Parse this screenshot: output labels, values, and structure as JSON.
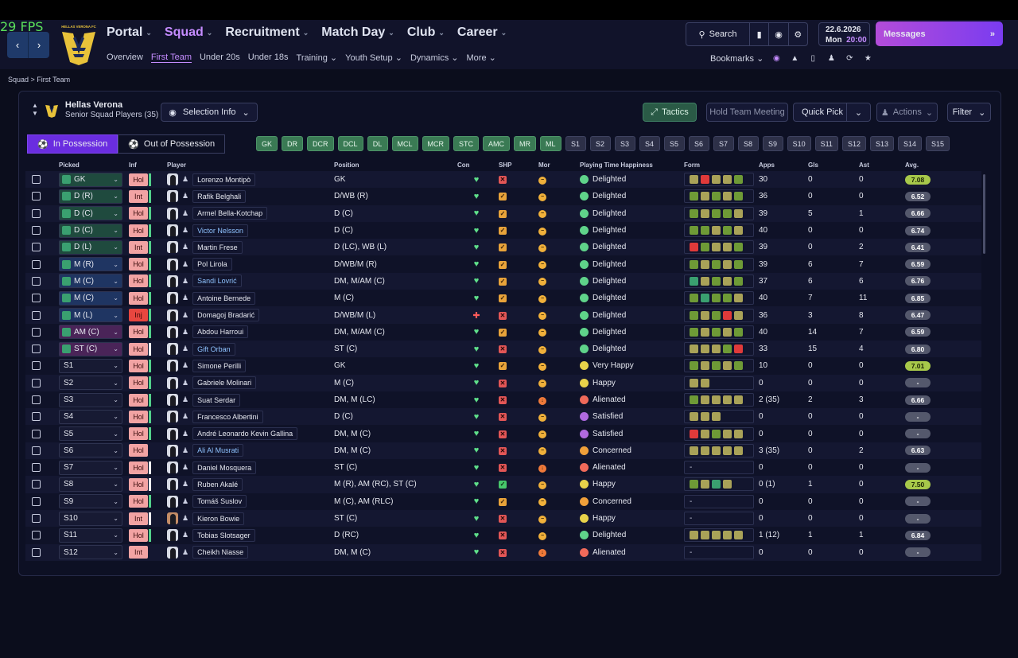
{
  "fps": "29 FPS",
  "club_crest_text": "HELLAS VERONA FC",
  "top_nav": [
    {
      "label": "Portal",
      "active": false
    },
    {
      "label": "Squad",
      "active": true
    },
    {
      "label": "Recruitment",
      "active": false
    },
    {
      "label": "Match Day",
      "active": false
    },
    {
      "label": "Club",
      "active": false
    },
    {
      "label": "Career",
      "active": false
    }
  ],
  "sub_nav": [
    {
      "label": "Overview",
      "active": false
    },
    {
      "label": "First Team",
      "active": true
    },
    {
      "label": "Under 20s",
      "active": false
    },
    {
      "label": "Under 18s",
      "active": false
    },
    {
      "label": "Training ⌄",
      "active": false
    },
    {
      "label": "Youth Setup ⌄",
      "active": false
    },
    {
      "label": "Dynamics ⌄",
      "active": false
    },
    {
      "label": "More ⌄",
      "active": false
    }
  ],
  "search_label": "Search",
  "date": "22.6.2026",
  "day": "Mon",
  "time": "20:00",
  "messages_label": "Messages",
  "bookmarks_label": "Bookmarks",
  "breadcrumb": "Squad  >  First Team",
  "team_name": "Hellas Verona",
  "team_sub": "Senior Squad Players (35)",
  "selection_info": "Selection Info",
  "tactics": "Tactics",
  "hold_meeting": "Hold Team Meeting",
  "quick_pick": "Quick Pick",
  "actions": "Actions",
  "filter": "Filter",
  "tab_in": "In Possession",
  "tab_out": "Out of Possession",
  "positions": [
    {
      "l": "GK",
      "g": true
    },
    {
      "l": "DR",
      "g": true
    },
    {
      "l": "DCR",
      "g": true
    },
    {
      "l": "DCL",
      "g": true
    },
    {
      "l": "DL",
      "g": true
    },
    {
      "l": "MCL",
      "g": true
    },
    {
      "l": "MCR",
      "g": true
    },
    {
      "l": "STC",
      "g": true
    },
    {
      "l": "AMC",
      "g": true
    },
    {
      "l": "MR",
      "g": true
    },
    {
      "l": "ML",
      "g": true
    },
    {
      "l": "S1",
      "g": false
    },
    {
      "l": "S2",
      "g": false
    },
    {
      "l": "S3",
      "g": false
    },
    {
      "l": "S4",
      "g": false
    },
    {
      "l": "S5",
      "g": false
    },
    {
      "l": "S6",
      "g": false
    },
    {
      "l": "S7",
      "g": false
    },
    {
      "l": "S8",
      "g": false
    },
    {
      "l": "S9",
      "g": false
    },
    {
      "l": "S10",
      "g": false
    },
    {
      "l": "S11",
      "g": false
    },
    {
      "l": "S12",
      "g": false
    },
    {
      "l": "S13",
      "g": false
    },
    {
      "l": "S14",
      "g": false
    },
    {
      "l": "S15",
      "g": false
    }
  ],
  "columns": [
    "Picked",
    "Inf",
    "Player",
    "Position",
    "Con",
    "SHP",
    "Mor",
    "Playing Time Happiness",
    "Form",
    "Apps",
    "Gls",
    "Ast",
    "Avg."
  ],
  "players": [
    {
      "pick": "GK",
      "pc": "g",
      "sq": "#3aa070",
      "sl": "#52d08a",
      "inf": "Hol",
      "name": "Lorenzo Montipò",
      "hl": false,
      "pos": "GK",
      "con": "g",
      "shp": "x",
      "mor": "o",
      "hap": "Delighted",
      "hf": "green",
      "form": "YRYYG",
      "apps": "30",
      "gls": "0",
      "ast": "0",
      "avg": "7.08",
      "hi": true
    },
    {
      "pick": "D (R)",
      "pc": "g",
      "sq": "#3aa070",
      "sl": "#52d08a",
      "inf": "Int",
      "name": "Rafik Belghali",
      "hl": false,
      "pos": "D/WB (R)",
      "con": "g",
      "shp": "w",
      "mor": "o",
      "hap": "Delighted",
      "hf": "green",
      "form": "GYGYG",
      "apps": "36",
      "gls": "0",
      "ast": "0",
      "avg": "6.52",
      "hi": false
    },
    {
      "pick": "D (C)",
      "pc": "g",
      "sq": "#3aa070",
      "sl": "#52d08a",
      "inf": "Hol",
      "name": "Armel Bella-Kotchap",
      "hl": false,
      "pos": "D (C)",
      "con": "g",
      "shp": "w",
      "mor": "o",
      "hap": "Delighted",
      "hf": "green",
      "form": "GYGGY",
      "apps": "39",
      "gls": "5",
      "ast": "1",
      "avg": "6.66",
      "hi": false
    },
    {
      "pick": "D (C)",
      "pc": "g",
      "sq": "#3aa070",
      "sl": "#52d08a",
      "inf": "Hol",
      "name": "Victor Nelsson",
      "hl": true,
      "pos": "D (C)",
      "con": "g",
      "shp": "w",
      "mor": "o",
      "hap": "Delighted",
      "hf": "green",
      "form": "GGYGY",
      "apps": "40",
      "gls": "0",
      "ast": "0",
      "avg": "6.74",
      "hi": false
    },
    {
      "pick": "D (L)",
      "pc": "g",
      "sq": "#3aa070",
      "sl": "#52d08a",
      "inf": "Int",
      "name": "Martin Frese",
      "hl": false,
      "pos": "D (LC), WB (L)",
      "con": "g",
      "shp": "w",
      "mor": "o",
      "hap": "Delighted",
      "hf": "green",
      "form": "RGYYG",
      "apps": "39",
      "gls": "0",
      "ast": "2",
      "avg": "6.41",
      "hi": false
    },
    {
      "pick": "M (R)",
      "pc": "b",
      "sq": "#3aa070",
      "sl": "#52d08a",
      "inf": "Hol",
      "name": "Pol Lirola",
      "hl": false,
      "pos": "D/WB/M (R)",
      "con": "g",
      "shp": "w",
      "mor": "o",
      "hap": "Delighted",
      "hf": "green",
      "form": "GYGYG",
      "apps": "39",
      "gls": "6",
      "ast": "7",
      "avg": "6.59",
      "hi": false
    },
    {
      "pick": "M (C)",
      "pc": "b",
      "sq": "#3aa070",
      "sl": "#52d08a",
      "inf": "Hol",
      "name": "Sandi Lovrić",
      "hl": true,
      "pos": "DM, M/AM (C)",
      "con": "g",
      "shp": "w",
      "mor": "o",
      "hap": "Delighted",
      "hf": "green",
      "form": "TYGYG",
      "apps": "37",
      "gls": "6",
      "ast": "6",
      "avg": "6.76",
      "hi": false
    },
    {
      "pick": "M (C)",
      "pc": "b",
      "sq": "#3aa070",
      "sl": "#52d08a",
      "inf": "Hol",
      "name": "Antoine Bernede",
      "hl": false,
      "pos": "M (C)",
      "con": "g",
      "shp": "w",
      "mor": "o",
      "hap": "Delighted",
      "hf": "green",
      "form": "GTGGY",
      "apps": "40",
      "gls": "7",
      "ast": "11",
      "avg": "6.85",
      "hi": false
    },
    {
      "pick": "M (L)",
      "pc": "b",
      "sq": "#3aa070",
      "sl": "#52d08a",
      "inf": "Inj",
      "name": "Domagoj Bradarić",
      "hl": false,
      "pos": "D/WB/M (L)",
      "con": "r",
      "shp": "x",
      "mor": "o",
      "hap": "Delighted",
      "hf": "green",
      "form": "GYGRY",
      "apps": "36",
      "gls": "3",
      "ast": "8",
      "avg": "6.47",
      "hi": false
    },
    {
      "pick": "AM (C)",
      "pc": "p",
      "sq": "#3aa070",
      "sl": "#52d08a",
      "inf": "Hol",
      "name": "Abdou Harroui",
      "hl": false,
      "pos": "DM, M/AM (C)",
      "con": "g",
      "shp": "w",
      "mor": "o",
      "hap": "Delighted",
      "hf": "green",
      "form": "GYGYG",
      "apps": "40",
      "gls": "14",
      "ast": "7",
      "avg": "6.59",
      "hi": false
    },
    {
      "pick": "ST (C)",
      "pc": "p",
      "sq": "#3aa070",
      "sl": "#ffffff",
      "inf": "Hol",
      "name": "Gift Orban",
      "hl": true,
      "pos": "ST (C)",
      "con": "g",
      "shp": "x",
      "mor": "o",
      "hap": "Delighted",
      "hf": "green",
      "form": "YYYGR",
      "apps": "33",
      "gls": "15",
      "ast": "4",
      "avg": "6.80",
      "hi": false
    },
    {
      "pick": "S1",
      "pc": "s",
      "sq": "",
      "sl": "#52d08a",
      "inf": "Hol",
      "name": "Simone Perilli",
      "hl": false,
      "pos": "GK",
      "con": "g",
      "shp": "w",
      "mor": "o",
      "hap": "Very Happy",
      "hf": "yellow",
      "form": "GYGYG",
      "apps": "10",
      "gls": "0",
      "ast": "0",
      "avg": "7.01",
      "hi": true
    },
    {
      "pick": "S2",
      "pc": "s",
      "sq": "",
      "sl": "#52d08a",
      "inf": "Hol",
      "name": "Gabriele Molinari",
      "hl": false,
      "pos": "M (C)",
      "con": "g",
      "shp": "x",
      "mor": "o",
      "hap": "Happy",
      "hf": "yellow",
      "form": "YY",
      "apps": "0",
      "gls": "0",
      "ast": "0",
      "avg": "-",
      "hi": false
    },
    {
      "pick": "S3",
      "pc": "s",
      "sq": "",
      "sl": "#52d08a",
      "inf": "Hol",
      "name": "Suat Serdar",
      "hl": false,
      "pos": "DM, M (LC)",
      "con": "g",
      "shp": "x",
      "mor": "r",
      "hap": "Alienated",
      "hf": "red",
      "form": "GYYYY",
      "apps": "2 (35)",
      "gls": "2",
      "ast": "3",
      "avg": "6.66",
      "hi": false
    },
    {
      "pick": "S4",
      "pc": "s",
      "sq": "",
      "sl": "#52d08a",
      "inf": "Hol",
      "name": "Francesco Albertini",
      "hl": false,
      "pos": "D (C)",
      "con": "g",
      "shp": "x",
      "mor": "o",
      "hap": "Satisfied",
      "hf": "purple",
      "form": "YYY",
      "apps": "0",
      "gls": "0",
      "ast": "0",
      "avg": "-",
      "hi": false
    },
    {
      "pick": "S5",
      "pc": "s",
      "sq": "",
      "sl": "#52d08a",
      "inf": "Hol",
      "name": "André Leonardo Kevin Gallina",
      "hl": false,
      "pos": "DM, M (C)",
      "con": "g",
      "shp": "x",
      "mor": "o",
      "hap": "Satisfied",
      "hf": "purple",
      "form": "RYGYY",
      "apps": "0",
      "gls": "0",
      "ast": "0",
      "avg": "-",
      "hi": false
    },
    {
      "pick": "S6",
      "pc": "s",
      "sq": "",
      "sl": "",
      "inf": "Hol",
      "name": "Ali Al Musrati",
      "hl": true,
      "pos": "DM, M (C)",
      "con": "g",
      "shp": "x",
      "mor": "o",
      "hap": "Concerned",
      "hf": "orange",
      "form": "YYYYY",
      "apps": "3 (35)",
      "gls": "0",
      "ast": "2",
      "avg": "6.63",
      "hi": false
    },
    {
      "pick": "S7",
      "pc": "s",
      "sq": "",
      "sl": "#ffffff",
      "inf": "Hol",
      "name": "Daniel Mosquera",
      "hl": false,
      "pos": "ST (C)",
      "con": "g",
      "shp": "x",
      "mor": "r",
      "hap": "Alienated",
      "hf": "red",
      "form": "-",
      "apps": "0",
      "gls": "0",
      "ast": "0",
      "avg": "-",
      "hi": false
    },
    {
      "pick": "S8",
      "pc": "s",
      "sq": "",
      "sl": "#ffffff",
      "inf": "Hol",
      "name": "Ruben Akalé",
      "hl": false,
      "pos": "M (R), AM (RC), ST (C)",
      "con": "g",
      "shp": "ok",
      "mor": "o",
      "hap": "Happy",
      "hf": "yellow",
      "form": "GYTY",
      "apps": "0 (1)",
      "gls": "1",
      "ast": "0",
      "avg": "7.50",
      "hi": true
    },
    {
      "pick": "S9",
      "pc": "s",
      "sq": "",
      "sl": "#52d08a",
      "inf": "Hol",
      "name": "Tomáš Suslov",
      "hl": false,
      "pos": "M (C), AM (RLC)",
      "con": "g",
      "shp": "w",
      "mor": "o",
      "hap": "Concerned",
      "hf": "orange",
      "form": "-",
      "apps": "0",
      "gls": "0",
      "ast": "0",
      "avg": "-",
      "hi": false
    },
    {
      "pick": "S10",
      "pc": "s",
      "sq": "",
      "sl": "#ffffff",
      "inf": "Int",
      "name": "Kieron Bowie",
      "hl": false,
      "pos": "ST (C)",
      "con": "g",
      "shp": "x",
      "mor": "o",
      "hap": "Happy",
      "hf": "yellow",
      "form": "-",
      "apps": "0",
      "gls": "0",
      "ast": "0",
      "avg": "-",
      "hi": false,
      "real": true
    },
    {
      "pick": "S11",
      "pc": "s",
      "sq": "",
      "sl": "#52d08a",
      "inf": "Hol",
      "name": "Tobias Slotsager",
      "hl": false,
      "pos": "D (RC)",
      "con": "g",
      "shp": "x",
      "mor": "o",
      "hap": "Delighted",
      "hf": "green",
      "form": "YYYYY",
      "apps": "1 (12)",
      "gls": "1",
      "ast": "1",
      "avg": "6.84",
      "hi": false
    },
    {
      "pick": "S12",
      "pc": "s",
      "sq": "",
      "sl": "",
      "inf": "Int",
      "name": "Cheikh Niasse",
      "hl": false,
      "pos": "DM, M (C)",
      "con": "g",
      "shp": "x",
      "mor": "r",
      "hap": "Alienated",
      "hf": "red",
      "form": "-",
      "apps": "0",
      "gls": "0",
      "ast": "0",
      "avg": "-",
      "hi": false
    }
  ]
}
